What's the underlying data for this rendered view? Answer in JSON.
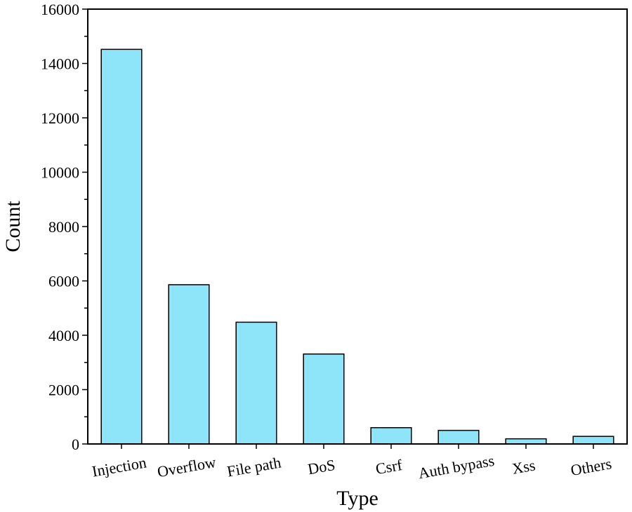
{
  "chart_data": {
    "type": "bar",
    "title": "",
    "xlabel": "Type",
    "ylabel": "Count",
    "categories": [
      "Injection",
      "Overflow",
      "File path",
      "DoS",
      "Csrf",
      "Auth bypass",
      "Xss",
      "Others"
    ],
    "values": [
      14520,
      5860,
      4480,
      3310,
      600,
      500,
      190,
      280
    ],
    "ylim": [
      0,
      16000
    ],
    "yticks": [
      0,
      2000,
      4000,
      6000,
      8000,
      10000,
      12000,
      14000,
      16000
    ],
    "yticks_minor_step": 1000,
    "grid": false,
    "legend": "none",
    "bar_color": "#8ee4f8",
    "edge_color": "#000000"
  }
}
